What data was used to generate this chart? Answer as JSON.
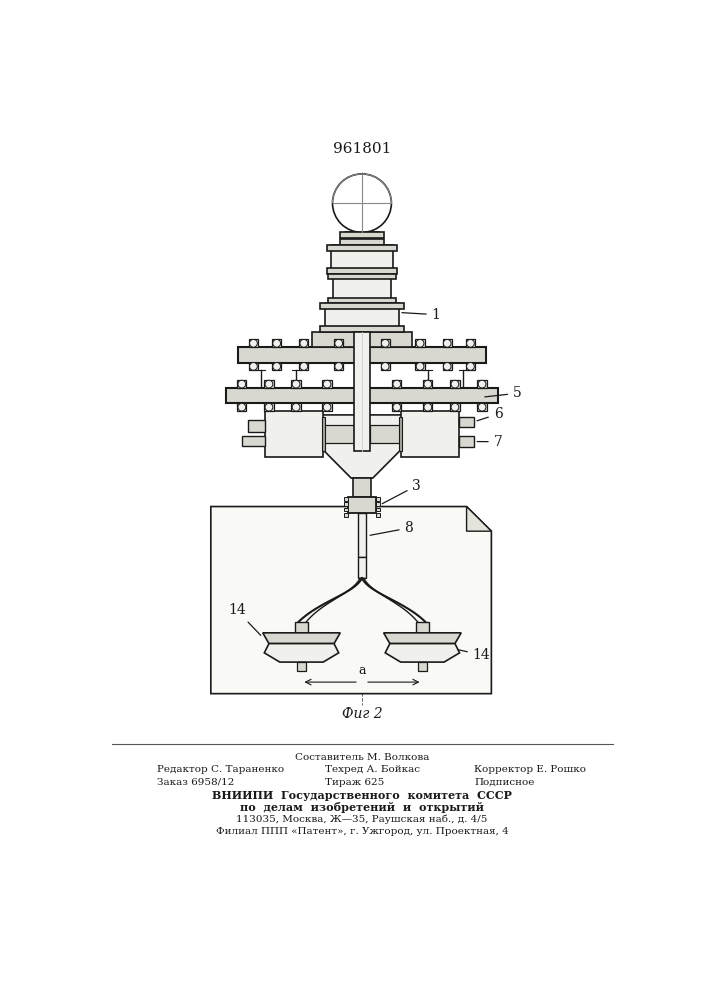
{
  "patent_number": "961801",
  "figure_label": "Фиг 2",
  "line_color": "#1a1a1a",
  "fill_light": "#f0f0ec",
  "fill_mid": "#d8d8d0",
  "fill_dark": "#a8a8a0",
  "footer": {
    "sestavitel": "Составитель М. Волкова",
    "redaktor": "Редактор С. Тараненко",
    "tekhred": "Техред А. Бойкас",
    "korrektor": "Корректор Е. Рошко",
    "zakaz": "Заказ 6958/12",
    "tirazh": "Тираж 625",
    "podpisnoe": "Подписное",
    "vniipи1": "ВНИИПИ  Государственного  комитета  СССР",
    "vniipи2": "по  делам  изобретений  и  открытий",
    "addr1": "113035, Москва, Ж—35, Раушская наб., д. 4/5",
    "addr2": "Филиал ППП «Патент», г. Ужгород, ул. Проектная, 4"
  }
}
